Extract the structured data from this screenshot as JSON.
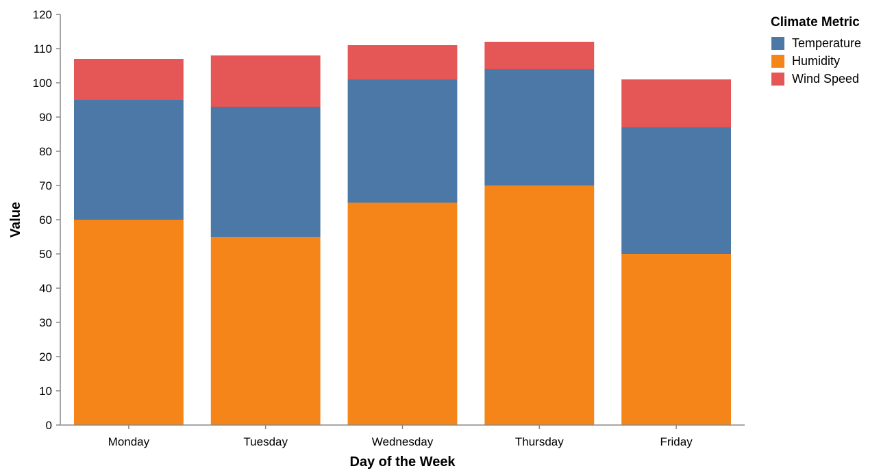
{
  "chart_data": {
    "type": "bar",
    "stacked": true,
    "categories": [
      "Monday",
      "Tuesday",
      "Wednesday",
      "Thursday",
      "Friday"
    ],
    "series": [
      {
        "name": "Humidity",
        "values": [
          60,
          55,
          65,
          70,
          50
        ],
        "color": "#f58518"
      },
      {
        "name": "Temperature",
        "values": [
          35,
          38,
          36,
          34,
          37
        ],
        "color": "#4c78a8"
      },
      {
        "name": "Wind Speed",
        "values": [
          12,
          15,
          10,
          8,
          14
        ],
        "color": "#e45756"
      }
    ],
    "xlabel": "Day of the Week",
    "ylabel": "Value",
    "ylim": [
      0,
      120
    ],
    "yticks": [
      0,
      10,
      20,
      30,
      40,
      50,
      60,
      70,
      80,
      90,
      100,
      110,
      120
    ],
    "grid": false,
    "legend": {
      "title": "Climate Metric",
      "position": "top-right",
      "items": [
        {
          "label": "Temperature",
          "color": "#4c78a8"
        },
        {
          "label": "Humidity",
          "color": "#f58518"
        },
        {
          "label": "Wind Speed",
          "color": "#e45756"
        }
      ]
    }
  }
}
